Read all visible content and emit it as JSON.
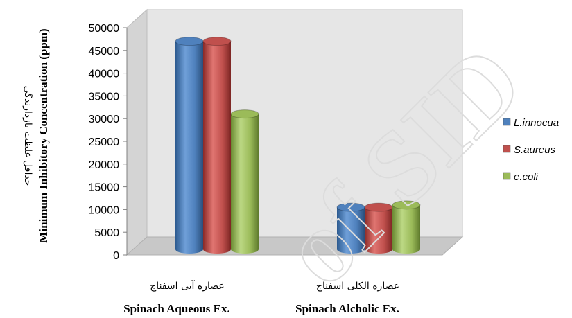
{
  "chart_data": {
    "type": "bar",
    "style": "3d-cylinder",
    "categories": [
      "Spinach Aqueous Ex.",
      "Spinach Alcholic Ex."
    ],
    "categories_fa": [
      "عصاره آبی اسفناج",
      "عصاره الکلی اسفناج"
    ],
    "series": [
      {
        "name": "L.innocua",
        "color": "#4f81bd",
        "values": [
          47000,
          10500
        ]
      },
      {
        "name": "S.aureus",
        "color": "#c0504d",
        "values": [
          47000,
          10500
        ]
      },
      {
        "name": "e.coli",
        "color": "#9bbb59",
        "values": [
          31000,
          11000
        ]
      }
    ],
    "ylabel": "Minimum Inhibitory Concentration (ppm)",
    "ylabel_fa": "حداقل غلظت بازدارندگی",
    "ylim": [
      0,
      50000
    ],
    "yticks": [
      0,
      5000,
      10000,
      15000,
      20000,
      25000,
      30000,
      35000,
      40000,
      45000,
      50000
    ],
    "grid": false,
    "legend_position": "right",
    "watermark": "of SID"
  }
}
